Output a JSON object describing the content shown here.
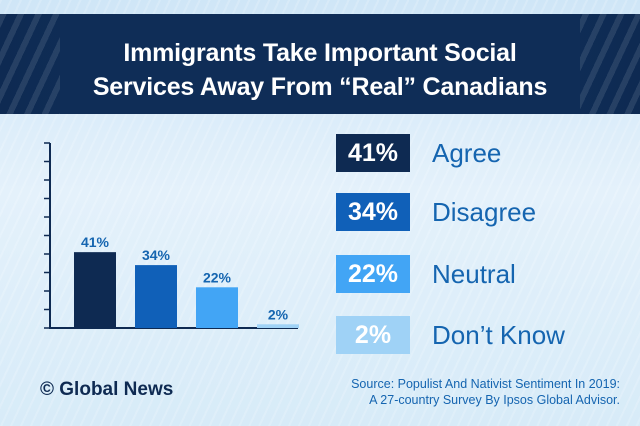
{
  "title_lines": [
    "Immigrants Take Important Social",
    "Services Away From “Real” Canadians"
  ],
  "chart_data": {
    "type": "bar",
    "categories": [
      "Agree",
      "Disagree",
      "Neutral",
      "Don’t Know"
    ],
    "values": [
      41,
      34,
      22,
      2
    ],
    "value_labels": [
      "41%",
      "34%",
      "22%",
      "2%"
    ],
    "title": "Immigrants Take Important Social Services Away From “Real” Canadians",
    "xlabel": "",
    "ylabel": "",
    "ylim": [
      0,
      100
    ],
    "grid": false,
    "legend_placement": "right",
    "colors": [
      "#0e2a52",
      "#1060b8",
      "#42a5f5",
      "#9fd2f6"
    ]
  },
  "legend": [
    {
      "value": "41%",
      "label": "Agree",
      "color": "#0e2a52"
    },
    {
      "value": "34%",
      "label": "Disagree",
      "color": "#1060b8"
    },
    {
      "value": "22%",
      "label": "Neutral",
      "color": "#42a5f5"
    },
    {
      "value": "2%",
      "label": "Don’t Know",
      "color": "#9fd2f6"
    }
  ],
  "logo": "© Global News",
  "source_lines": [
    "Source: Populist And Nativist Sentiment In 2019:",
    "A 27-country Survey By Ipsos Global Advisor."
  ],
  "colors": {
    "navy": "#0e2a52",
    "text_blue": "#1565b0"
  }
}
